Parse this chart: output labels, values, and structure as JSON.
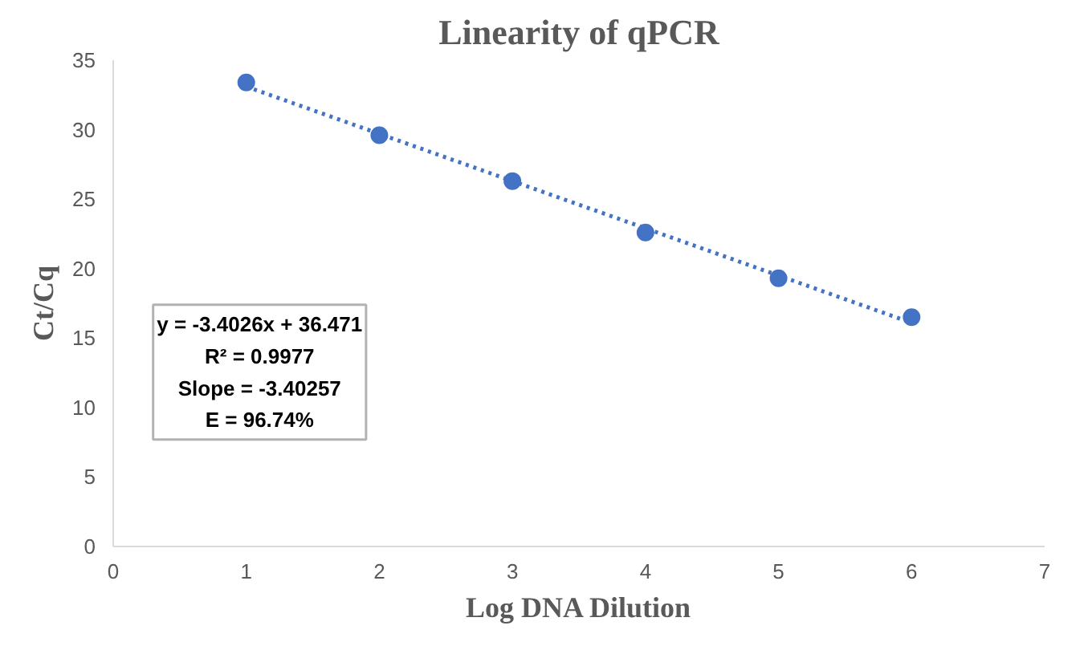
{
  "chart_data": {
    "type": "scatter",
    "title": "Linearity of qPCR",
    "xlabel": "Log DNA Dilution",
    "ylabel": "Ct/Cq",
    "x": [
      1,
      2,
      3,
      4,
      5,
      6
    ],
    "series": [
      {
        "color": "#4472c4",
        "values": [
          33.4,
          29.6,
          26.3,
          22.6,
          19.3,
          16.5
        ],
        "marker": "circle"
      },
      {
        "type": "line",
        "color": "#4472c4",
        "x": [
          1,
          6
        ],
        "values": [
          33.1,
          16.1
        ],
        "line_style": "dotted",
        "marker": "none"
      }
    ],
    "xlim": [
      0,
      7
    ],
    "ylim": [
      0,
      35
    ],
    "xticks": [
      0,
      1,
      2,
      3,
      4,
      5,
      6,
      7
    ],
    "yticks": [
      0,
      5,
      10,
      15,
      20,
      25,
      30,
      35
    ],
    "grid": false,
    "annotations": [
      "y = -3.4026x + 36.471",
      "R² = 0.9977",
      "Slope = -3.40257",
      "E = 96.74%"
    ]
  }
}
